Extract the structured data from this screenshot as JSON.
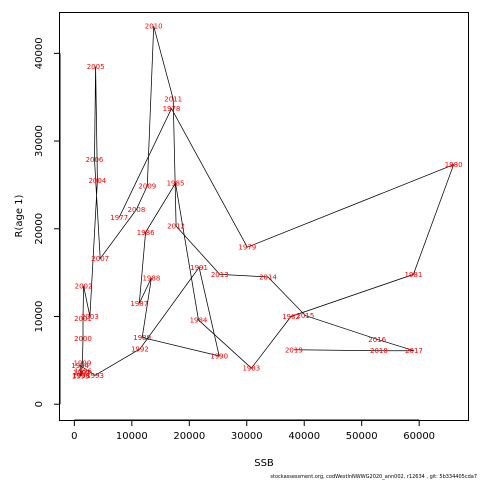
{
  "chart_data": {
    "type": "line",
    "xlabel": "SSB",
    "ylabel": "R(age 1)",
    "xlim": [
      -2500,
      68500
    ],
    "ylim": [
      -1800,
      44600
    ],
    "x_ticks": [
      0,
      10000,
      20000,
      30000,
      40000,
      50000,
      60000
    ],
    "x_tick_labels": [
      "0",
      "10000",
      "20000",
      "30000",
      "40000",
      "50000",
      "60000"
    ],
    "y_ticks": [
      0,
      10000,
      20000,
      30000,
      40000
    ],
    "y_tick_labels": [
      "0",
      "10000",
      "20000",
      "30000",
      "40000"
    ],
    "points": [
      {
        "year": "1977",
        "ssb": 7800,
        "rec": 21300
      },
      {
        "year": "1978",
        "ssb": 16900,
        "rec": 33700
      },
      {
        "year": "1979",
        "ssb": 30100,
        "rec": 17900
      },
      {
        "year": "1980",
        "ssb": 66000,
        "rec": 27300
      },
      {
        "year": "1981",
        "ssb": 59000,
        "rec": 14800
      },
      {
        "year": "1982",
        "ssb": 37700,
        "rec": 10000
      },
      {
        "year": "1983",
        "ssb": 30800,
        "rec": 4100
      },
      {
        "year": "1984",
        "ssb": 21600,
        "rec": 9600
      },
      {
        "year": "1985",
        "ssb": 17600,
        "rec": 25200
      },
      {
        "year": "1986",
        "ssb": 12400,
        "rec": 19600
      },
      {
        "year": "1987",
        "ssb": 11300,
        "rec": 11500
      },
      {
        "year": "1988",
        "ssb": 13400,
        "rec": 14400
      },
      {
        "year": "1989",
        "ssb": 11800,
        "rec": 7600
      },
      {
        "year": "1990",
        "ssb": 25200,
        "rec": 5500
      },
      {
        "year": "1991",
        "ssb": 21700,
        "rec": 15600
      },
      {
        "year": "1992",
        "ssb": 11400,
        "rec": 6300
      },
      {
        "year": "1993",
        "ssb": 3600,
        "rec": 3300
      },
      {
        "year": "1994",
        "ssb": 1000,
        "rec": 4400
      },
      {
        "year": "1995",
        "ssb": 1100,
        "rec": 3200
      },
      {
        "year": "1996",
        "ssb": 1500,
        "rec": 3800
      },
      {
        "year": "1997",
        "ssb": 1300,
        "rec": 3600
      },
      {
        "year": "1998",
        "ssb": 1200,
        "rec": 3300
      },
      {
        "year": "1999",
        "ssb": 1400,
        "rec": 4700
      },
      {
        "year": "2000",
        "ssb": 1500,
        "rec": 7500
      },
      {
        "year": "2001",
        "ssb": 1500,
        "rec": 9800
      },
      {
        "year": "2002",
        "ssb": 1600,
        "rec": 13500
      },
      {
        "year": "2003",
        "ssb": 2700,
        "rec": 10000
      },
      {
        "year": "2004",
        "ssb": 4000,
        "rec": 25500
      },
      {
        "year": "2005",
        "ssb": 3700,
        "rec": 38500
      },
      {
        "year": "2006",
        "ssb": 3500,
        "rec": 27900
      },
      {
        "year": "2007",
        "ssb": 4500,
        "rec": 16600
      },
      {
        "year": "2008",
        "ssb": 10800,
        "rec": 22200
      },
      {
        "year": "2009",
        "ssb": 12700,
        "rec": 24900
      },
      {
        "year": "2010",
        "ssb": 13800,
        "rec": 43100
      },
      {
        "year": "2011",
        "ssb": 17200,
        "rec": 34800
      },
      {
        "year": "2012",
        "ssb": 17700,
        "rec": 20300
      },
      {
        "year": "2013",
        "ssb": 25300,
        "rec": 14800
      },
      {
        "year": "2014",
        "ssb": 33700,
        "rec": 14500
      },
      {
        "year": "2015",
        "ssb": 40200,
        "rec": 10100
      },
      {
        "year": "2016",
        "ssb": 52700,
        "rec": 7400
      },
      {
        "year": "2017",
        "ssb": 59100,
        "rec": 6100
      },
      {
        "year": "2018",
        "ssb": 53000,
        "rec": 6100
      },
      {
        "year": "2019",
        "ssb": 38200,
        "rec": 6200
      }
    ]
  },
  "footer_text": "stockassessment.org, codWestlnNWWG2020_ann002, r12634 , git: 5b334405cda7"
}
